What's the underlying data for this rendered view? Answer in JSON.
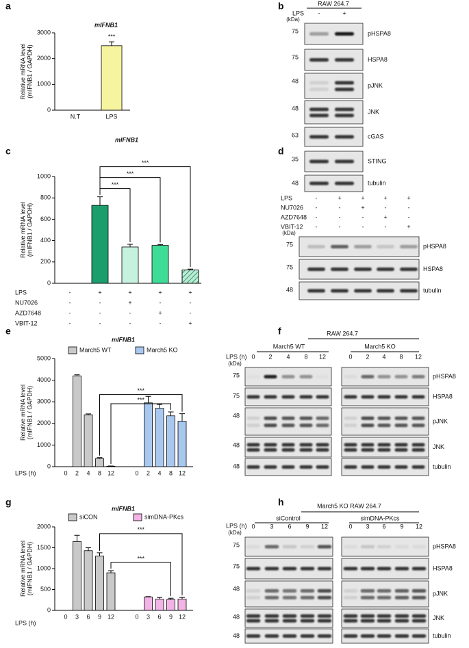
{
  "chart_data": [
    {
      "panel": "a",
      "type": "bar",
      "title": "mIFNB1",
      "ylabel": [
        "Relative mRNA level",
        "(mIFNB1 / GAPDH)"
      ],
      "categories": [
        "N.T",
        "LPS"
      ],
      "values": [
        0,
        2500
      ],
      "errors": [
        0,
        150
      ],
      "colors": [
        "#ffffff",
        "#f7f4a0"
      ],
      "ylim": [
        0,
        3000
      ],
      "yticks": [
        0,
        1000,
        2000,
        3000
      ],
      "annotations": [
        {
          "index": 1,
          "label": "***"
        }
      ]
    },
    {
      "panel": "c",
      "type": "bar",
      "title": "mIFNB1",
      "ylabel": [
        "Relative mRNA level",
        "(mIFNB1 / GAPDH)"
      ],
      "categories": [
        null,
        null,
        null,
        null,
        null
      ],
      "values": [
        0,
        730,
        340,
        355,
        125
      ],
      "errors": [
        0,
        80,
        25,
        8,
        8
      ],
      "colors": [
        "#ffffff",
        "#1b9e6b",
        "#c6f1df",
        "#3fdc98",
        "#b9ecd5"
      ],
      "hatch": [
        false,
        false,
        false,
        false,
        true
      ],
      "ylim": [
        0,
        1000
      ],
      "yticks": [
        0,
        200,
        400,
        600,
        800,
        1000
      ],
      "treatments": [
        {
          "name": "LPS",
          "signs": [
            "-",
            "+",
            "+",
            "+",
            "+"
          ]
        },
        {
          "name": "NU7026",
          "signs": [
            "-",
            "-",
            "+",
            "-",
            "-"
          ]
        },
        {
          "name": "AZD7648",
          "signs": [
            "-",
            "-",
            "-",
            "+",
            "-"
          ]
        },
        {
          "name": "VBIT-12",
          "signs": [
            "-",
            "-",
            "-",
            "-",
            "+"
          ]
        }
      ],
      "brackets": [
        {
          "from": 1,
          "to": 2,
          "label": "***"
        },
        {
          "from": 1,
          "to": 3,
          "label": "***"
        },
        {
          "from": 1,
          "to": 4,
          "label": "***"
        }
      ]
    },
    {
      "panel": "e",
      "type": "grouped_bar",
      "title": "mIFNB1",
      "ylabel": [
        "Relative mRNA level",
        "(mIFNB1 / GAPDH)"
      ],
      "xlabel": "LPS (h)",
      "categories": [
        0,
        2,
        4,
        8,
        12,
        0,
        2,
        4,
        8,
        12
      ],
      "series": [
        {
          "name": "March5 WT",
          "color": "#c9c9c9",
          "values": [
            0,
            4200,
            2400,
            380,
            20,
            null,
            null,
            null,
            null,
            null
          ],
          "errors": [
            0,
            50,
            40,
            40,
            10,
            null,
            null,
            null,
            null,
            null
          ]
        },
        {
          "name": "March5 KO",
          "color": "#a9c8ef",
          "values": [
            null,
            null,
            null,
            null,
            null,
            0,
            2950,
            2700,
            2350,
            2100
          ],
          "errors": [
            null,
            null,
            null,
            null,
            null,
            0,
            300,
            180,
            180,
            350
          ]
        }
      ],
      "ylim": [
        0,
        5000
      ],
      "yticks": [
        0,
        1000,
        2000,
        3000,
        4000,
        5000
      ],
      "legend": "top",
      "brackets": [
        {
          "from": 4,
          "to": 8,
          "label": "***"
        },
        {
          "from": 3,
          "to": 9,
          "label": "***"
        }
      ]
    },
    {
      "panel": "g",
      "type": "grouped_bar",
      "title": "mIFNB1",
      "ylabel": [
        "Relative mRNA level",
        "(mIFNB1 / GAPDH)"
      ],
      "xlabel": "LPS (h)",
      "categories": [
        0,
        3,
        6,
        9,
        12,
        0,
        3,
        6,
        9,
        12
      ],
      "series": [
        {
          "name": "siCON",
          "color": "#c9c9c9",
          "values": [
            0,
            1650,
            1430,
            1300,
            900,
            null,
            null,
            null,
            null,
            null
          ],
          "errors": [
            0,
            150,
            70,
            80,
            50,
            null,
            null,
            null,
            null,
            null
          ]
        },
        {
          "name": "simDNA-PKcs",
          "color": "#f2b3e6",
          "values": [
            null,
            null,
            null,
            null,
            null,
            0,
            320,
            270,
            260,
            270
          ],
          "errors": [
            null,
            null,
            null,
            null,
            null,
            0,
            10,
            40,
            30,
            40
          ]
        }
      ],
      "ylim": [
        0,
        2000
      ],
      "yticks": [
        0,
        500,
        1000,
        1500,
        2000
      ],
      "legend": "top",
      "brackets": [
        {
          "from": 4,
          "to": 8,
          "label": "***"
        },
        {
          "from": 3,
          "to": 9,
          "label": "***"
        }
      ]
    }
  ],
  "blots": [
    {
      "panel": "b",
      "header": "RAW 264.7",
      "unit": "(kDa)",
      "treatments": [
        {
          "name": "LPS",
          "signs": [
            "-",
            "+"
          ]
        }
      ],
      "rows": [
        {
          "kda": 75,
          "label": "pHSPA8"
        },
        {
          "kda": 75,
          "label": "HSPA8"
        },
        {
          "kda": 48,
          "label": "pJNK"
        },
        {
          "kda": 48,
          "label": "JNK"
        },
        {
          "kda": 63,
          "label": "cGAS"
        },
        {
          "kda": 35,
          "label": "STING"
        },
        {
          "kda": 48,
          "label": "tubulin"
        }
      ]
    },
    {
      "panel": "d",
      "unit": "(kDa)",
      "treatments": [
        {
          "name": "LPS",
          "signs": [
            "-",
            "+",
            "+",
            "+",
            "+"
          ]
        },
        {
          "name": "NU7026",
          "signs": [
            "-",
            "-",
            "+",
            "-",
            "-"
          ]
        },
        {
          "name": "AZD7648",
          "signs": [
            "-",
            "-",
            "-",
            "+",
            "-"
          ]
        },
        {
          "name": "VBIT-12",
          "signs": [
            "-",
            "-",
            "-",
            "-",
            "+"
          ]
        }
      ],
      "rows": [
        {
          "kda": 75,
          "label": "pHSPA8"
        },
        {
          "kda": 75,
          "label": "HSPA8"
        },
        {
          "kda": 48,
          "label": "tubulin"
        }
      ]
    },
    {
      "panel": "f",
      "header": "RAW 264.7",
      "groups": [
        "March5 WT",
        "March5 KO"
      ],
      "lane_title": "LPS (h)",
      "lanes": [
        0,
        2,
        4,
        8,
        12,
        0,
        2,
        4,
        8,
        12
      ],
      "unit": "(kDa)",
      "rows": [
        {
          "kda": 75,
          "label": "pHSPA8"
        },
        {
          "kda": 75,
          "label": "HSPA8"
        },
        {
          "kda": 48,
          "label": "pJNK"
        },
        {
          "kda": 48,
          "label": "JNK"
        },
        {
          "kda": 48,
          "label": "tubulin"
        }
      ]
    },
    {
      "panel": "h",
      "header": "March5 KO RAW 264.7",
      "groups": [
        "siControl",
        "simDNA-PKcs"
      ],
      "lane_title": "LPS (h)",
      "lanes": [
        0,
        3,
        6,
        9,
        12,
        0,
        3,
        6,
        9,
        12
      ],
      "unit": "(kDa)",
      "rows": [
        {
          "kda": 75,
          "label": "pHSPA8"
        },
        {
          "kda": 75,
          "label": "HSPA8"
        },
        {
          "kda": 48,
          "label": "pJNK"
        },
        {
          "kda": 48,
          "label": "JNK"
        },
        {
          "kda": 48,
          "label": "tubulin"
        }
      ]
    }
  ]
}
